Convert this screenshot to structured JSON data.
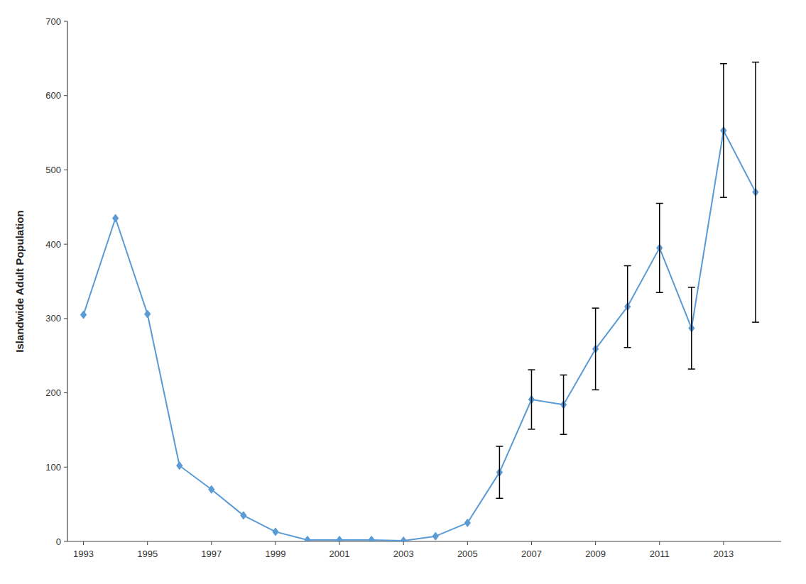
{
  "chart_data": {
    "type": "line",
    "ylabel": "Islandwide Adult Population",
    "x": [
      1993,
      1994,
      1995,
      1996,
      1997,
      1998,
      1999,
      2000,
      2001,
      2002,
      2003,
      2004,
      2005,
      2006,
      2007,
      2008,
      2009,
      2010,
      2011,
      2012,
      2013,
      2014
    ],
    "values": [
      305,
      435,
      306,
      102,
      70,
      35,
      13,
      2,
      2,
      2,
      1,
      7,
      25,
      93,
      191,
      184,
      259,
      316,
      395,
      287,
      553,
      470
    ],
    "yerr_lower": [
      0,
      0,
      0,
      0,
      0,
      0,
      0,
      0,
      0,
      0,
      0,
      0,
      0,
      35,
      40,
      40,
      55,
      55,
      60,
      55,
      90,
      175
    ],
    "yerr_upper": [
      0,
      0,
      0,
      0,
      0,
      0,
      0,
      0,
      0,
      0,
      0,
      0,
      0,
      35,
      40,
      40,
      55,
      55,
      60,
      55,
      90,
      175
    ],
    "color": "#5b9bd5",
    "marker": "diamond",
    "xlim": [
      1992.5,
      2014.8
    ],
    "ylim": [
      0,
      700
    ],
    "xticks": [
      1993,
      1995,
      1997,
      1999,
      2001,
      2003,
      2005,
      2007,
      2009,
      2011,
      2013
    ],
    "yticks": [
      0,
      100,
      200,
      300,
      400,
      500,
      600,
      700
    ],
    "grid": false
  }
}
